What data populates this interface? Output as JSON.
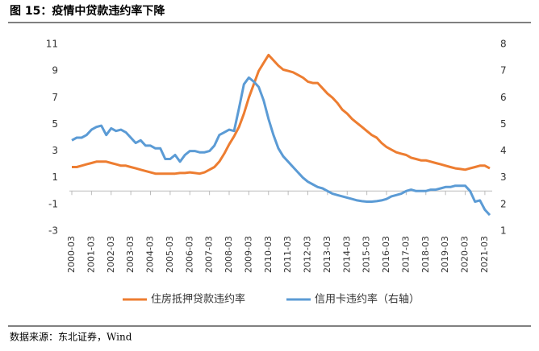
{
  "chart_data": {
    "type": "line",
    "title": "图 15：疫情中贷款违约率下降",
    "source": "数据来源：东北证券，Wind",
    "categories": [
      "2000-03",
      null,
      null,
      null,
      "2001-03",
      null,
      null,
      null,
      "2002-03",
      null,
      null,
      null,
      "2003-03",
      null,
      null,
      null,
      "2004-03",
      null,
      null,
      null,
      "2005-03",
      null,
      null,
      null,
      "2006-03",
      null,
      null,
      null,
      "2007-03",
      null,
      null,
      null,
      "2008-03",
      null,
      null,
      null,
      "2009-03",
      null,
      null,
      null,
      "2010-03",
      null,
      null,
      null,
      "2011-03",
      null,
      null,
      null,
      "2012-03",
      null,
      null,
      null,
      "2013-03",
      null,
      null,
      null,
      "2014-03",
      null,
      null,
      null,
      "2015-03",
      null,
      null,
      null,
      "2016-03",
      null,
      null,
      null,
      "2017-03",
      null,
      null,
      null,
      "2018-03",
      null,
      null,
      null,
      "2019-03",
      null,
      null,
      null,
      "2020-03",
      null,
      null,
      null,
      "2021-03",
      null
    ],
    "series": [
      {
        "name": "住房抵押贷款违约率",
        "color": "#ED7D31",
        "values": [
          1.8,
          1.8,
          1.9,
          2.0,
          2.1,
          2.2,
          2.2,
          2.2,
          2.1,
          2.0,
          1.9,
          1.9,
          1.8,
          1.7,
          1.6,
          1.5,
          1.4,
          1.3,
          1.3,
          1.3,
          1.3,
          1.3,
          1.35,
          1.35,
          1.4,
          1.35,
          1.3,
          1.4,
          1.6,
          1.8,
          2.2,
          2.8,
          3.5,
          4.1,
          4.8,
          5.8,
          7.0,
          8.0,
          9.0,
          9.6,
          10.2,
          9.8,
          9.4,
          9.1,
          9.0,
          8.9,
          8.7,
          8.5,
          8.2,
          8.1,
          8.1,
          7.7,
          7.3,
          7.0,
          6.6,
          6.1,
          5.8,
          5.4,
          5.1,
          4.8,
          4.5,
          4.2,
          4.0,
          3.6,
          3.3,
          3.1,
          2.9,
          2.8,
          2.7,
          2.5,
          2.4,
          2.3,
          2.3,
          2.2,
          2.1,
          2.0,
          1.9,
          1.8,
          1.7,
          1.65,
          1.6,
          1.7,
          1.8,
          1.9,
          1.9,
          1.7
        ]
      },
      {
        "name": "信用卡违约率（右轴）",
        "color": "#5B9BD5",
        "axis": "y2",
        "values": [
          4.4,
          4.5,
          4.5,
          4.6,
          4.8,
          4.9,
          4.95,
          4.6,
          4.85,
          4.75,
          4.8,
          4.7,
          4.5,
          4.3,
          4.4,
          4.2,
          4.2,
          4.1,
          4.1,
          3.7,
          3.7,
          3.85,
          3.6,
          3.85,
          4.0,
          4.0,
          3.95,
          3.95,
          4.0,
          4.2,
          4.6,
          4.7,
          4.8,
          4.75,
          5.6,
          6.5,
          6.75,
          6.6,
          6.4,
          5.9,
          5.2,
          4.6,
          4.1,
          3.8,
          3.6,
          3.4,
          3.2,
          3.0,
          2.85,
          2.75,
          2.65,
          2.6,
          2.5,
          2.4,
          2.35,
          2.3,
          2.25,
          2.2,
          2.15,
          2.12,
          2.1,
          2.1,
          2.12,
          2.15,
          2.2,
          2.3,
          2.35,
          2.4,
          2.5,
          2.55,
          2.5,
          2.5,
          2.5,
          2.55,
          2.55,
          2.6,
          2.65,
          2.65,
          2.7,
          2.7,
          2.7,
          2.5,
          2.1,
          2.15,
          1.8,
          1.6
        ]
      }
    ],
    "ylim": [
      -3,
      11
    ],
    "yticks": [
      -3,
      -1,
      1,
      3,
      5,
      7,
      9,
      11
    ],
    "y2lim": [
      1,
      8
    ],
    "y2ticks": [
      1,
      2,
      3,
      4,
      5,
      6,
      7,
      8
    ],
    "legend": "bottom"
  }
}
